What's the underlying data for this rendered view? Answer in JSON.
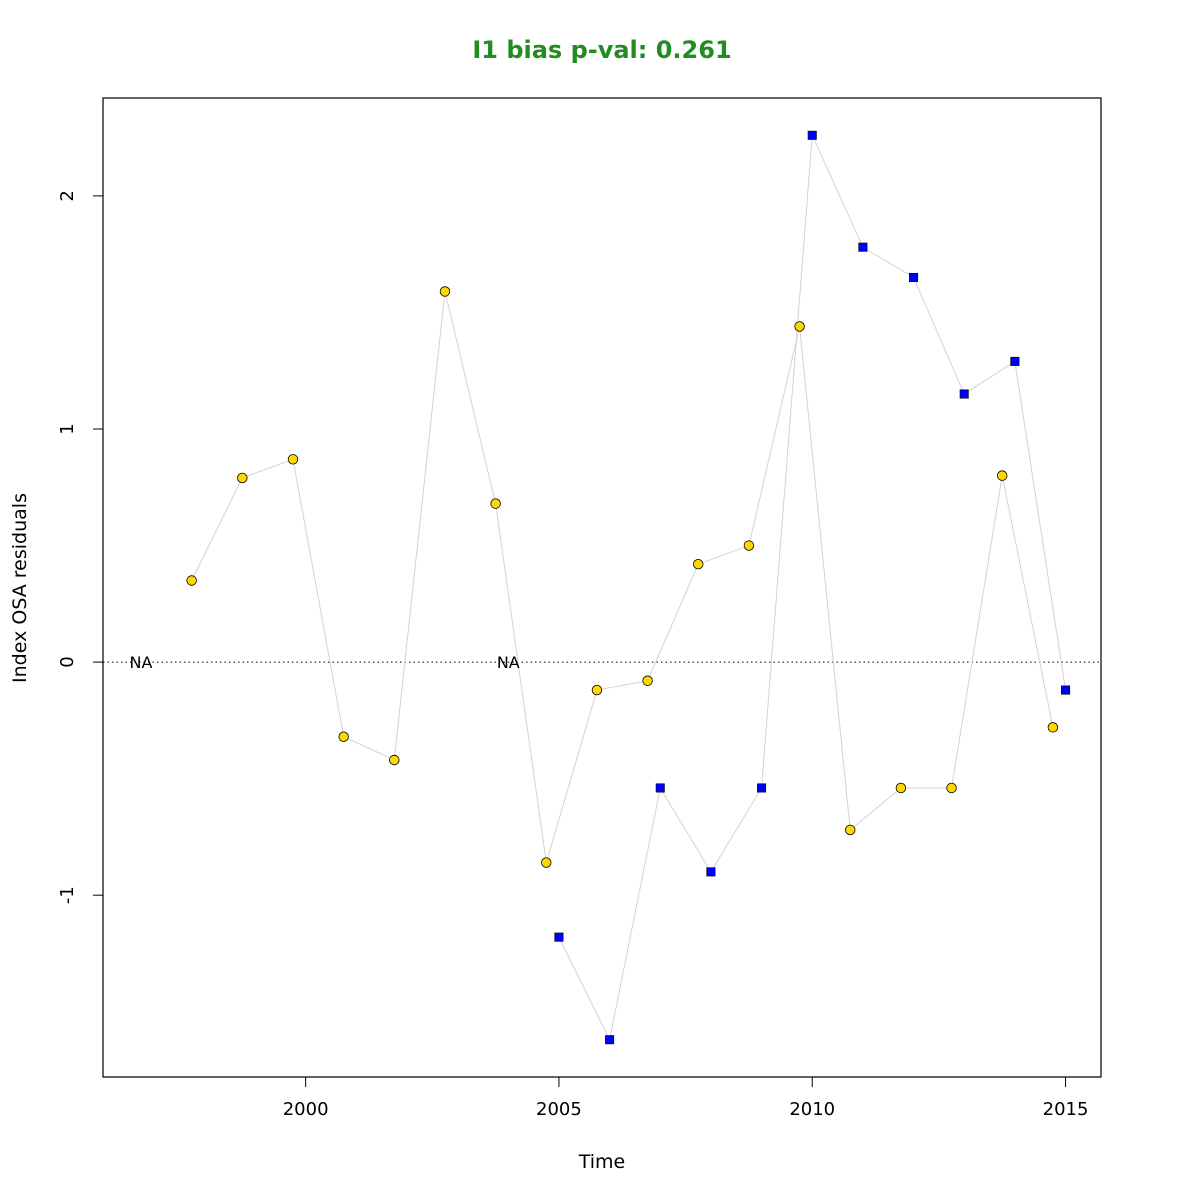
{
  "chart_data": {
    "type": "scatter",
    "title": "I1 bias p-val: 0.261",
    "title_color": "#228B22",
    "xlabel": "Time",
    "ylabel": "Index OSA residuals",
    "xlim": [
      1996,
      2015.7
    ],
    "ylim": [
      -1.78,
      2.42
    ],
    "x_ticks": [
      2000,
      2005,
      2010,
      2015
    ],
    "y_ticks": [
      -1,
      0,
      1,
      2
    ],
    "reference_line": 0,
    "na_label": "NA",
    "line_color": "#d3d3d3",
    "series": [
      {
        "marker": "circle",
        "color": "#FFD700",
        "points": [
          {
            "x": 1996.75,
            "y": null
          },
          {
            "x": 1997.75,
            "y": 0.35
          },
          {
            "x": 1998.75,
            "y": 0.79
          },
          {
            "x": 1999.75,
            "y": 0.87
          },
          {
            "x": 2000.75,
            "y": -0.32
          },
          {
            "x": 2001.75,
            "y": -0.42
          },
          {
            "x": 2002.75,
            "y": 1.59
          },
          {
            "x": 2003.75,
            "y": 0.68
          },
          {
            "x": 2004.75,
            "y": -0.86
          },
          {
            "x": 2005.75,
            "y": -0.12
          },
          {
            "x": 2006.75,
            "y": -0.08
          },
          {
            "x": 2007.75,
            "y": 0.42
          },
          {
            "x": 2008.75,
            "y": 0.5
          },
          {
            "x": 2009.75,
            "y": 1.44
          },
          {
            "x": 2010.75,
            "y": -0.72
          },
          {
            "x": 2011.75,
            "y": -0.54
          },
          {
            "x": 2012.75,
            "y": -0.54
          },
          {
            "x": 2013.75,
            "y": 0.8
          },
          {
            "x": 2014.75,
            "y": -0.28
          }
        ]
      },
      {
        "marker": "square",
        "color": "#0000FF",
        "points": [
          {
            "x": 2004.0,
            "y": null
          },
          {
            "x": 2005.0,
            "y": -1.18
          },
          {
            "x": 2006.0,
            "y": -1.62
          },
          {
            "x": 2007.0,
            "y": -0.54
          },
          {
            "x": 2008.0,
            "y": -0.9
          },
          {
            "x": 2009.0,
            "y": -0.54
          },
          {
            "x": 2010.0,
            "y": 2.26
          },
          {
            "x": 2011.0,
            "y": 1.78
          },
          {
            "x": 2012.0,
            "y": 1.65
          },
          {
            "x": 2013.0,
            "y": 1.15
          },
          {
            "x": 2014.0,
            "y": 1.29
          },
          {
            "x": 2015.0,
            "y": -0.12
          }
        ]
      }
    ]
  }
}
